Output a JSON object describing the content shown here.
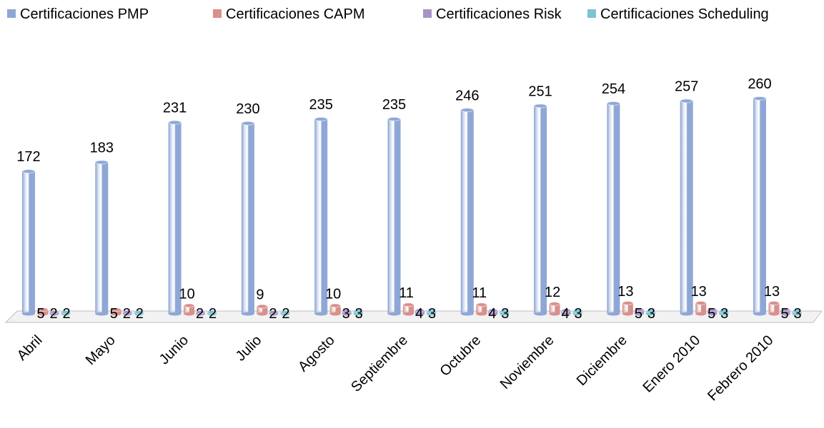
{
  "chart_data": {
    "type": "bar3d",
    "categories": [
      "Abril",
      "Mayo",
      "Junio",
      "Julio",
      "Agosto",
      "Septiembre",
      "Octubre",
      "Noviembre",
      "Diciembre",
      "Enero 2010",
      "Febrero 2010"
    ],
    "series": [
      {
        "name": "Certificaciones PMP",
        "color": "#8ea7d6",
        "values": [
          172,
          183,
          231,
          230,
          235,
          235,
          246,
          251,
          254,
          257,
          260
        ]
      },
      {
        "name": "Certificaciones CAPM",
        "color": "#d8908d",
        "values": [
          5,
          5,
          10,
          9,
          10,
          11,
          11,
          12,
          13,
          13,
          13
        ]
      },
      {
        "name": "Certificaciones Risk",
        "color": "#a595c6",
        "values": [
          2,
          2,
          2,
          2,
          3,
          4,
          4,
          4,
          5,
          5,
          5
        ]
      },
      {
        "name": "Certificaciones Scheduling",
        "color": "#7cc3d3",
        "values": [
          2,
          2,
          2,
          2,
          3,
          3,
          3,
          3,
          3,
          3,
          3
        ]
      }
    ],
    "legend": "top"
  }
}
